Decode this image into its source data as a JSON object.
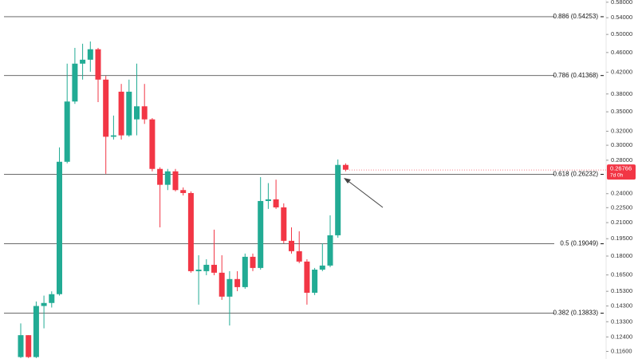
{
  "chart_data": {
    "type": "candlestick",
    "log_scale": true,
    "up_color": "#22ab94",
    "down_color": "#f23645",
    "fib_color": "#555555",
    "ylim": [
      0.112,
      0.586
    ],
    "yticks": [
      {
        "value": 0.58,
        "label": "0.58000"
      },
      {
        "value": 0.54,
        "label": "0.54000"
      },
      {
        "value": 0.5,
        "label": "0.50000"
      },
      {
        "value": 0.46,
        "label": "0.46000"
      },
      {
        "value": 0.42,
        "label": "0.42000"
      },
      {
        "value": 0.38,
        "label": "0.38000"
      },
      {
        "value": 0.35,
        "label": "0.35000"
      },
      {
        "value": 0.32,
        "label": "0.32000"
      },
      {
        "value": 0.3,
        "label": "0.30000"
      },
      {
        "value": 0.28,
        "label": "0.28000"
      },
      {
        "value": 0.24,
        "label": "0.24000"
      },
      {
        "value": 0.225,
        "label": "0.22500"
      },
      {
        "value": 0.21,
        "label": "0.21000"
      },
      {
        "value": 0.195,
        "label": "0.19500"
      },
      {
        "value": 0.18,
        "label": "0.18000"
      },
      {
        "value": 0.165,
        "label": "0.16500"
      },
      {
        "value": 0.153,
        "label": "0.15300"
      },
      {
        "value": 0.143,
        "label": "0.14300"
      },
      {
        "value": 0.133,
        "label": "0.13300"
      },
      {
        "value": 0.124,
        "label": "0.12400"
      },
      {
        "value": 0.116,
        "label": "0.11600"
      }
    ],
    "fib_levels": [
      {
        "value": 0.54253,
        "label": "0.886 (0.54253)"
      },
      {
        "value": 0.41368,
        "label": "0.786 (0.41368)"
      },
      {
        "value": 0.26232,
        "label": "0.618 (0.26232)"
      },
      {
        "value": 0.19049,
        "label": "0.5 (0.19049)"
      },
      {
        "value": 0.13833,
        "label": "0.382 (0.13833)"
      }
    ],
    "last_price": {
      "value": 0.26766,
      "label": "0.26766"
    },
    "countdown": "7d 0h",
    "open": [
      0.113,
      0.125,
      0.113,
      0.143,
      0.145,
      0.151,
      0.278,
      0.367,
      0.437,
      0.445,
      0.467,
      0.406,
      0.312,
      0.384,
      0.314,
      0.338,
      0.359,
      0.338,
      0.269,
      0.25,
      0.266,
      0.244,
      0.2407,
      0.1679,
      0.1679,
      0.1729,
      0.1667,
      0.1493,
      0.1619,
      0.156,
      0.1794,
      0.1704,
      0.232,
      0.2338,
      0.2253,
      0.1931,
      0.1841,
      0.1755,
      0.152,
      0.1691,
      0.1723,
      0.1981,
      0.274
    ],
    "high": [
      0.132,
      0.125,
      0.146,
      0.15,
      0.153,
      0.297,
      0.437,
      0.47,
      0.479,
      0.484,
      0.47,
      0.413,
      0.344,
      0.398,
      0.406,
      0.437,
      0.398,
      0.34,
      0.271,
      0.269,
      0.269,
      0.247,
      0.2425,
      0.1807,
      0.1774,
      0.2033,
      0.1807,
      0.1679,
      0.1679,
      0.1821,
      0.1821,
      0.259,
      0.252,
      0.256,
      0.2295,
      0.2055,
      0.2018,
      0.1774,
      0.1704,
      0.1909,
      0.2172,
      0.281,
      0.276
    ],
    "low": [
      0.1125,
      0.1125,
      0.1125,
      0.129,
      0.142,
      0.15,
      0.276,
      0.363,
      0.406,
      0.421,
      0.366,
      0.263,
      0.308,
      0.308,
      0.312,
      0.314,
      0.331,
      0.266,
      0.2055,
      0.244,
      0.2425,
      0.238,
      0.1667,
      0.1439,
      0.1648,
      0.1648,
      0.1471,
      0.1307,
      0.1531,
      0.1548,
      0.1679,
      0.1691,
      0.2237,
      0.2237,
      0.1909,
      0.1821,
      0.1742,
      0.1439,
      0.1504,
      0.1679,
      0.171,
      0.1959,
      0.266
    ],
    "close": [
      0.125,
      0.113,
      0.143,
      0.145,
      0.151,
      0.278,
      0.367,
      0.437,
      0.445,
      0.467,
      0.406,
      0.312,
      0.314,
      0.314,
      0.384,
      0.359,
      0.338,
      0.269,
      0.25,
      0.266,
      0.244,
      0.2407,
      0.1679,
      0.1691,
      0.1729,
      0.1667,
      0.1493,
      0.1619,
      0.156,
      0.1794,
      0.1704,
      0.232,
      0.2338,
      0.2253,
      0.1931,
      0.1841,
      0.1755,
      0.152,
      0.1691,
      0.1723,
      0.1981,
      0.274,
      0.268
    ]
  }
}
